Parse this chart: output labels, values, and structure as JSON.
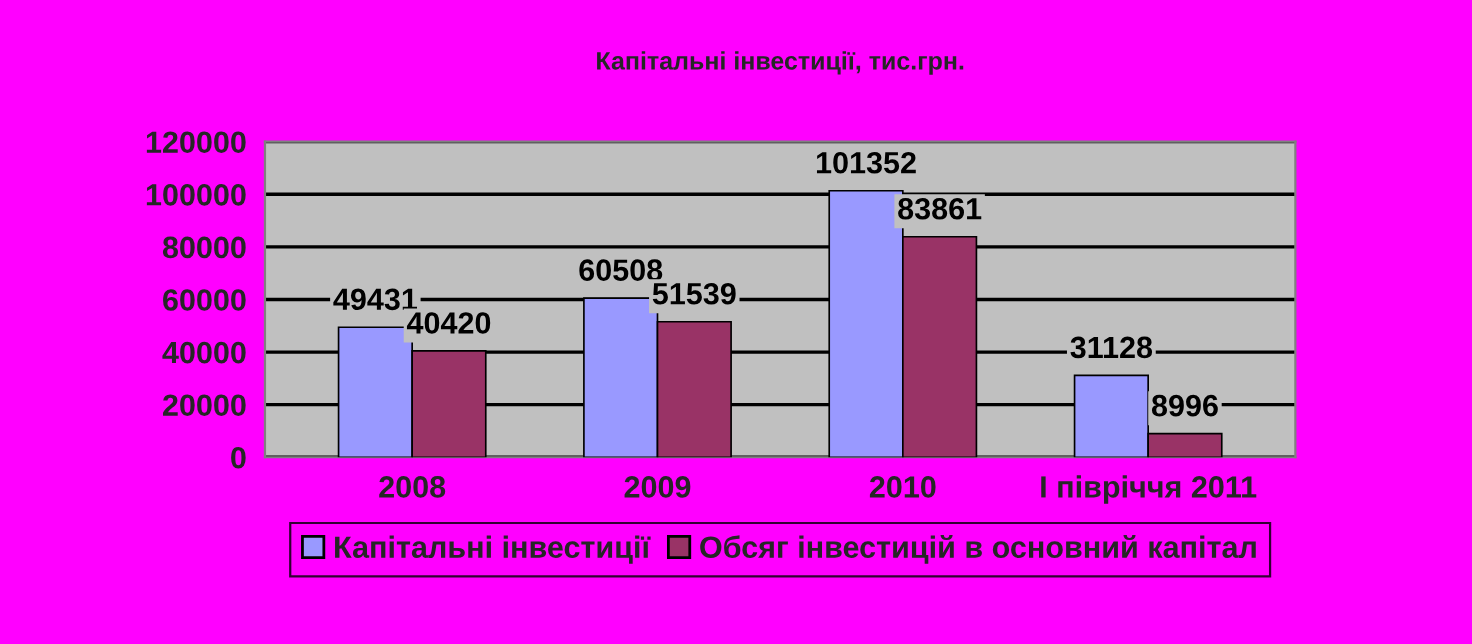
{
  "chart_data": {
    "type": "bar",
    "title": "Капітальні інвестиції, тис.грн.",
    "categories": [
      "2008",
      "2009",
      "2010",
      "І півріччя 2011"
    ],
    "series": [
      {
        "name": "Капітальні інвестиції",
        "color": "#9999ff",
        "values": [
          49431,
          60508,
          101352,
          31128
        ]
      },
      {
        "name": "Обсяг інвестицій в основний капітал",
        "color": "#993366",
        "values": [
          40420,
          51539,
          83861,
          8996
        ]
      }
    ],
    "ylim": [
      0,
      120000
    ],
    "yticks": [
      0,
      20000,
      40000,
      60000,
      80000,
      100000,
      120000
    ],
    "grid": "y",
    "legend": "bottom",
    "data_labels": true
  }
}
